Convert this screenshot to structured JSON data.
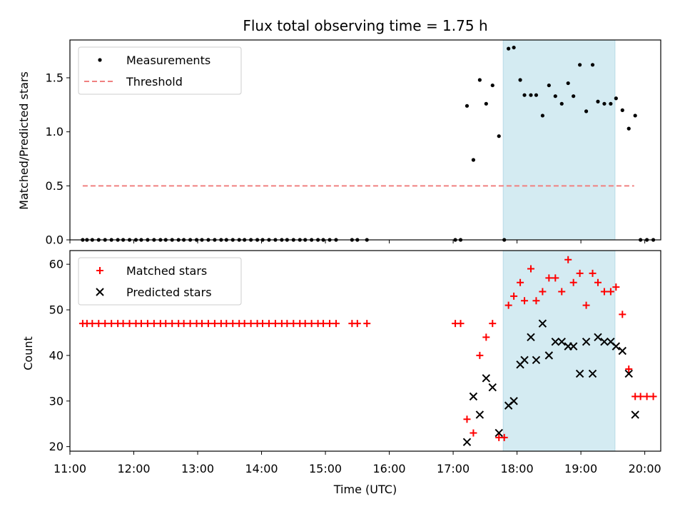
{
  "title": "Flux total observing time = 1.75 h",
  "chart_data": [
    {
      "type": "scatter",
      "ylabel": "Matched/Predicted stars",
      "xlim": [
        "11:00",
        "20:15"
      ],
      "ylim": [
        0,
        1.85
      ],
      "yticks": [
        "0.0",
        "0.5",
        "1.0",
        "1.5"
      ],
      "grid": false,
      "legend_position": "top-left",
      "highlight_span": {
        "from": "17:47",
        "to": "19:32",
        "color": "#d4ebf2"
      },
      "threshold": {
        "name": "Threshold",
        "value": 0.5,
        "from": "11:12",
        "to": "19:50",
        "color": "#f08080",
        "style": "dashed"
      },
      "series": [
        {
          "name": "Measurements",
          "color": "#000000",
          "marker": "dot",
          "points": [
            [
              "11:12",
              0
            ],
            [
              "11:16",
              0
            ],
            [
              "11:21",
              0
            ],
            [
              "11:27",
              0
            ],
            [
              "11:33",
              0
            ],
            [
              "11:39",
              0
            ],
            [
              "11:45",
              0
            ],
            [
              "11:50",
              0
            ],
            [
              "11:56",
              0
            ],
            [
              "12:02",
              0
            ],
            [
              "12:07",
              0
            ],
            [
              "12:13",
              0
            ],
            [
              "12:19",
              0
            ],
            [
              "12:25",
              0
            ],
            [
              "12:30",
              0
            ],
            [
              "12:36",
              0
            ],
            [
              "12:42",
              0
            ],
            [
              "12:47",
              0
            ],
            [
              "12:53",
              0
            ],
            [
              "12:59",
              0
            ],
            [
              "13:04",
              0
            ],
            [
              "13:10",
              0
            ],
            [
              "13:16",
              0
            ],
            [
              "13:22",
              0
            ],
            [
              "13:27",
              0
            ],
            [
              "13:33",
              0
            ],
            [
              "13:39",
              0
            ],
            [
              "13:44",
              0
            ],
            [
              "13:50",
              0
            ],
            [
              "13:56",
              0
            ],
            [
              "14:01",
              0
            ],
            [
              "14:07",
              0
            ],
            [
              "14:13",
              0
            ],
            [
              "14:19",
              0
            ],
            [
              "14:24",
              0
            ],
            [
              "14:30",
              0
            ],
            [
              "14:36",
              0
            ],
            [
              "14:41",
              0
            ],
            [
              "14:47",
              0
            ],
            [
              "14:53",
              0
            ],
            [
              "14:58",
              0
            ],
            [
              "15:04",
              0
            ],
            [
              "15:10",
              0
            ],
            [
              "15:25",
              0
            ],
            [
              "15:30",
              0
            ],
            [
              "15:39",
              0
            ],
            [
              "17:02",
              0
            ],
            [
              "17:07",
              0
            ],
            [
              "17:13",
              1.24
            ],
            [
              "17:19",
              0.74
            ],
            [
              "17:25",
              1.48
            ],
            [
              "17:31",
              1.26
            ],
            [
              "17:37",
              1.43
            ],
            [
              "17:43",
              0.96
            ],
            [
              "17:48",
              0
            ],
            [
              "17:52",
              1.77
            ],
            [
              "17:57",
              1.78
            ],
            [
              "18:03",
              1.48
            ],
            [
              "18:07",
              1.34
            ],
            [
              "18:13",
              1.34
            ],
            [
              "18:18",
              1.34
            ],
            [
              "18:24",
              1.15
            ],
            [
              "18:30",
              1.43
            ],
            [
              "18:36",
              1.33
            ],
            [
              "18:42",
              1.26
            ],
            [
              "18:48",
              1.45
            ],
            [
              "18:53",
              1.33
            ],
            [
              "18:59",
              1.62
            ],
            [
              "19:05",
              1.19
            ],
            [
              "19:11",
              1.62
            ],
            [
              "19:16",
              1.28
            ],
            [
              "19:22",
              1.26
            ],
            [
              "19:28",
              1.26
            ],
            [
              "19:33",
              1.31
            ],
            [
              "19:39",
              1.2
            ],
            [
              "19:45",
              1.03
            ],
            [
              "19:51",
              1.15
            ],
            [
              "19:56",
              0
            ],
            [
              "20:02",
              0
            ],
            [
              "20:08",
              0
            ]
          ]
        }
      ]
    },
    {
      "type": "scatter",
      "ylabel": "Count",
      "xlabel": "Time (UTC)",
      "xlim": [
        "11:00",
        "20:15"
      ],
      "ylim": [
        19,
        63
      ],
      "xticks": [
        "11:00",
        "12:00",
        "13:00",
        "14:00",
        "15:00",
        "16:00",
        "17:00",
        "18:00",
        "19:00",
        "20:00"
      ],
      "yticks": [
        "20",
        "30",
        "40",
        "50",
        "60"
      ],
      "grid": false,
      "legend_position": "top-left",
      "highlight_span": {
        "from": "17:47",
        "to": "19:32",
        "color": "#d4ebf2"
      },
      "series": [
        {
          "name": "Matched stars",
          "color": "#ff0000",
          "marker": "plus",
          "points": [
            [
              "11:12",
              47
            ],
            [
              "11:16",
              47
            ],
            [
              "11:21",
              47
            ],
            [
              "11:27",
              47
            ],
            [
              "11:33",
              47
            ],
            [
              "11:39",
              47
            ],
            [
              "11:45",
              47
            ],
            [
              "11:50",
              47
            ],
            [
              "11:56",
              47
            ],
            [
              "12:02",
              47
            ],
            [
              "12:07",
              47
            ],
            [
              "12:13",
              47
            ],
            [
              "12:19",
              47
            ],
            [
              "12:25",
              47
            ],
            [
              "12:30",
              47
            ],
            [
              "12:36",
              47
            ],
            [
              "12:42",
              47
            ],
            [
              "12:47",
              47
            ],
            [
              "12:53",
              47
            ],
            [
              "12:59",
              47
            ],
            [
              "13:04",
              47
            ],
            [
              "13:10",
              47
            ],
            [
              "13:16",
              47
            ],
            [
              "13:22",
              47
            ],
            [
              "13:27",
              47
            ],
            [
              "13:33",
              47
            ],
            [
              "13:39",
              47
            ],
            [
              "13:44",
              47
            ],
            [
              "13:50",
              47
            ],
            [
              "13:56",
              47
            ],
            [
              "14:01",
              47
            ],
            [
              "14:07",
              47
            ],
            [
              "14:13",
              47
            ],
            [
              "14:19",
              47
            ],
            [
              "14:24",
              47
            ],
            [
              "14:30",
              47
            ],
            [
              "14:36",
              47
            ],
            [
              "14:41",
              47
            ],
            [
              "14:47",
              47
            ],
            [
              "14:53",
              47
            ],
            [
              "14:58",
              47
            ],
            [
              "15:04",
              47
            ],
            [
              "15:10",
              47
            ],
            [
              "15:25",
              47
            ],
            [
              "15:30",
              47
            ],
            [
              "15:39",
              47
            ],
            [
              "17:02",
              47
            ],
            [
              "17:07",
              47
            ],
            [
              "17:13",
              26
            ],
            [
              "17:19",
              23
            ],
            [
              "17:25",
              40
            ],
            [
              "17:31",
              44
            ],
            [
              "17:37",
              47
            ],
            [
              "17:43",
              22
            ],
            [
              "17:48",
              22
            ],
            [
              "17:52",
              51
            ],
            [
              "17:57",
              53
            ],
            [
              "18:03",
              56
            ],
            [
              "18:07",
              52
            ],
            [
              "18:13",
              59
            ],
            [
              "18:18",
              52
            ],
            [
              "18:24",
              54
            ],
            [
              "18:30",
              57
            ],
            [
              "18:36",
              57
            ],
            [
              "18:42",
              54
            ],
            [
              "18:48",
              61
            ],
            [
              "18:53",
              56
            ],
            [
              "18:59",
              58
            ],
            [
              "19:05",
              51
            ],
            [
              "19:11",
              58
            ],
            [
              "19:16",
              56
            ],
            [
              "19:22",
              54
            ],
            [
              "19:28",
              54
            ],
            [
              "19:33",
              55
            ],
            [
              "19:39",
              49
            ],
            [
              "19:45",
              37
            ],
            [
              "19:51",
              31
            ],
            [
              "19:56",
              31
            ],
            [
              "20:02",
              31
            ],
            [
              "20:08",
              31
            ]
          ]
        },
        {
          "name": "Predicted stars",
          "color": "#000000",
          "marker": "x",
          "points": [
            [
              "17:13",
              21
            ],
            [
              "17:19",
              31
            ],
            [
              "17:25",
              27
            ],
            [
              "17:31",
              35
            ],
            [
              "17:37",
              33
            ],
            [
              "17:43",
              23
            ],
            [
              "17:52",
              29
            ],
            [
              "17:57",
              30
            ],
            [
              "18:03",
              38
            ],
            [
              "18:07",
              39
            ],
            [
              "18:13",
              44
            ],
            [
              "18:18",
              39
            ],
            [
              "18:24",
              47
            ],
            [
              "18:30",
              40
            ],
            [
              "18:36",
              43
            ],
            [
              "18:42",
              43
            ],
            [
              "18:48",
              42
            ],
            [
              "18:53",
              42
            ],
            [
              "18:59",
              36
            ],
            [
              "19:05",
              43
            ],
            [
              "19:11",
              36
            ],
            [
              "19:16",
              44
            ],
            [
              "19:22",
              43
            ],
            [
              "19:28",
              43
            ],
            [
              "19:33",
              42
            ],
            [
              "19:39",
              41
            ],
            [
              "19:45",
              36
            ],
            [
              "19:51",
              27
            ]
          ]
        }
      ]
    }
  ]
}
